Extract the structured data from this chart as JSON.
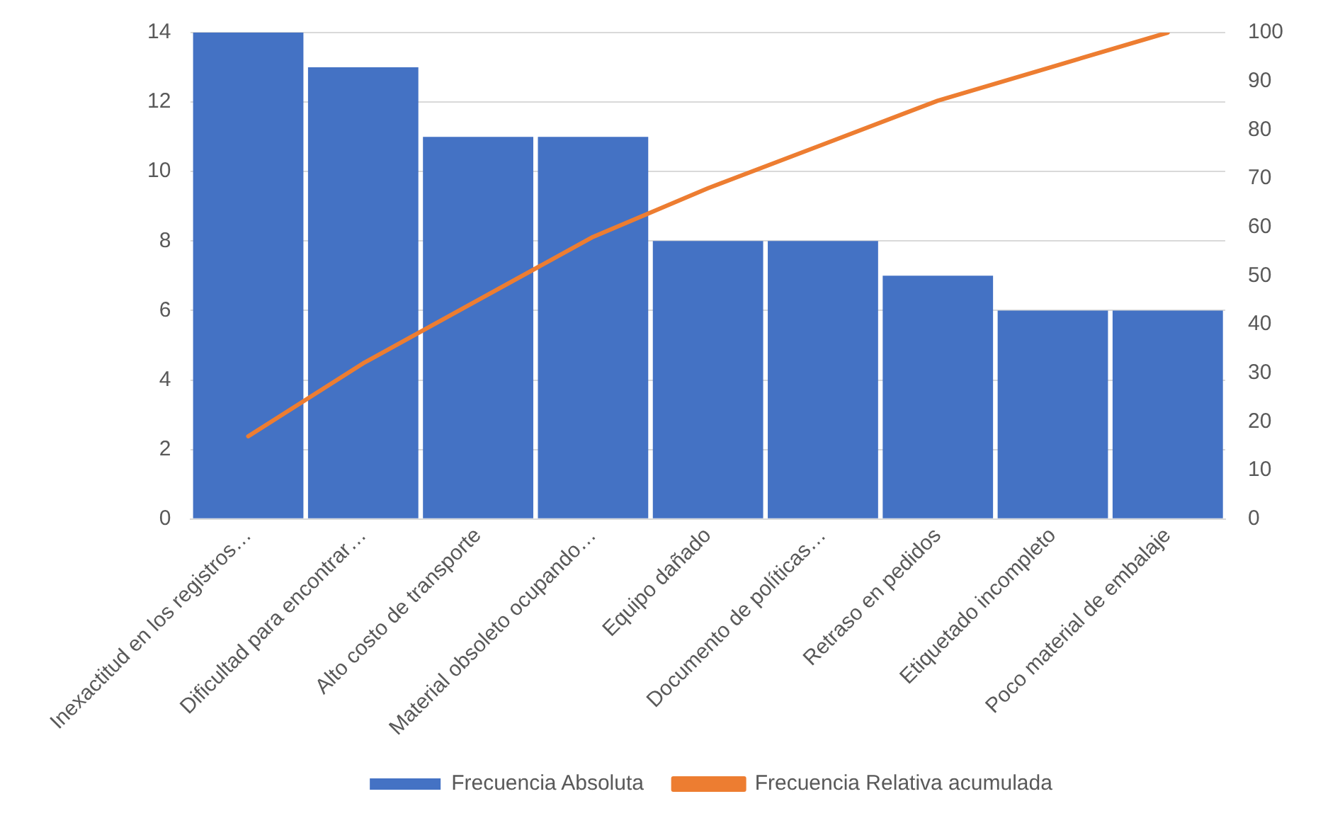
{
  "chart_data": {
    "type": "bar",
    "categories": [
      "Inexactitud en los registros…",
      "Dificultad para encontrar…",
      "Alto costo de transporte",
      "Material obsoleto ocupando…",
      "Equipo dañado",
      "Documento de políticas…",
      "Retraso en pedidos",
      "Etiquetado incompleto",
      "Poco material de embalaje"
    ],
    "series": [
      {
        "name": "Frecuencia Absoluta",
        "color": "#4472c4",
        "values": [
          14,
          13,
          11,
          11,
          8,
          8,
          7,
          6,
          6
        ]
      },
      {
        "name": "Frecuencia Relativa acumulada",
        "type": "line",
        "axis": "y2",
        "color": "#ed7d31",
        "marker": "none",
        "values": [
          17,
          32,
          45,
          58,
          68,
          77,
          86,
          93,
          100
        ]
      }
    ],
    "ylim": [
      0,
      14
    ],
    "yticks": [
      0,
      2,
      4,
      6,
      8,
      10,
      12,
      14
    ],
    "y2lim": [
      0,
      100
    ],
    "y2ticks": [
      0,
      10,
      20,
      30,
      40,
      50,
      60,
      70,
      80,
      90,
      100
    ],
    "grid": "y",
    "legend": "bottom"
  }
}
